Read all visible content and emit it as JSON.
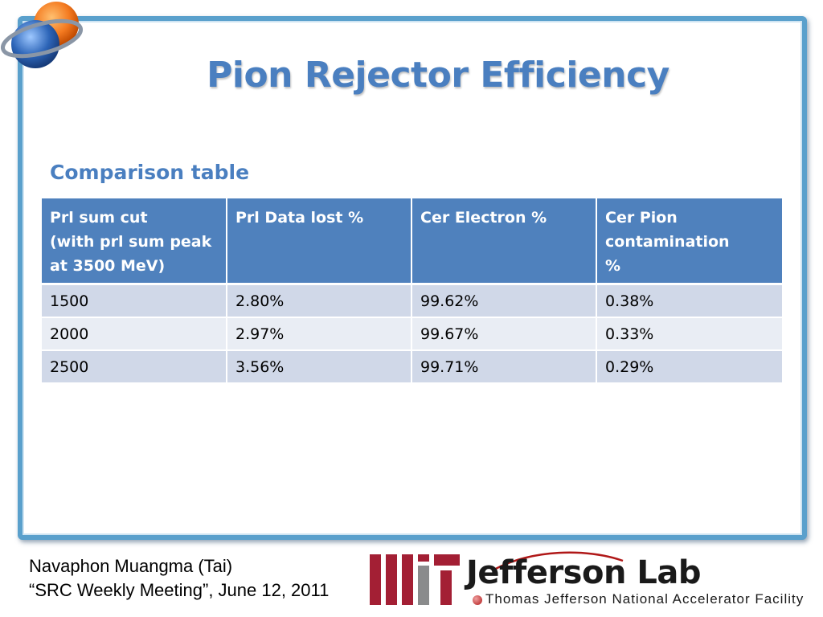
{
  "slide": {
    "title": "Pion Rejector Efficiency",
    "subtitle": "Comparison table"
  },
  "table": {
    "headers": [
      [
        "Prl sum cut",
        "(with prl sum peak",
        "at 3500 MeV)"
      ],
      [
        "Prl Data lost %"
      ],
      [
        "Cer Electron %"
      ],
      [
        "Cer Pion",
        "contamination",
        "%"
      ]
    ],
    "rows": [
      [
        "1500",
        "2.80%",
        "99.62%",
        "0.38%"
      ],
      [
        "2000",
        "2.97%",
        "99.67%",
        "0.33%"
      ],
      [
        "2500",
        "3.56%",
        "99.71%",
        "0.29%"
      ]
    ]
  },
  "footer": {
    "author": "Navaphon Muangma (Tai)",
    "event": "“SRC Weekly Meeting”, June 12, 2011"
  },
  "logos": {
    "mit": "MIT",
    "jlab_name": "Jefferson Lab",
    "jlab_sub": "Thomas Jefferson National Accelerator Facility"
  },
  "colors": {
    "title": "#4a7fc0",
    "header_bg": "#4f81bd",
    "row_odd": "#d0d8e8",
    "row_even": "#e9edf4",
    "frame": "#5aa0cc",
    "mit_red": "#a31f34"
  }
}
